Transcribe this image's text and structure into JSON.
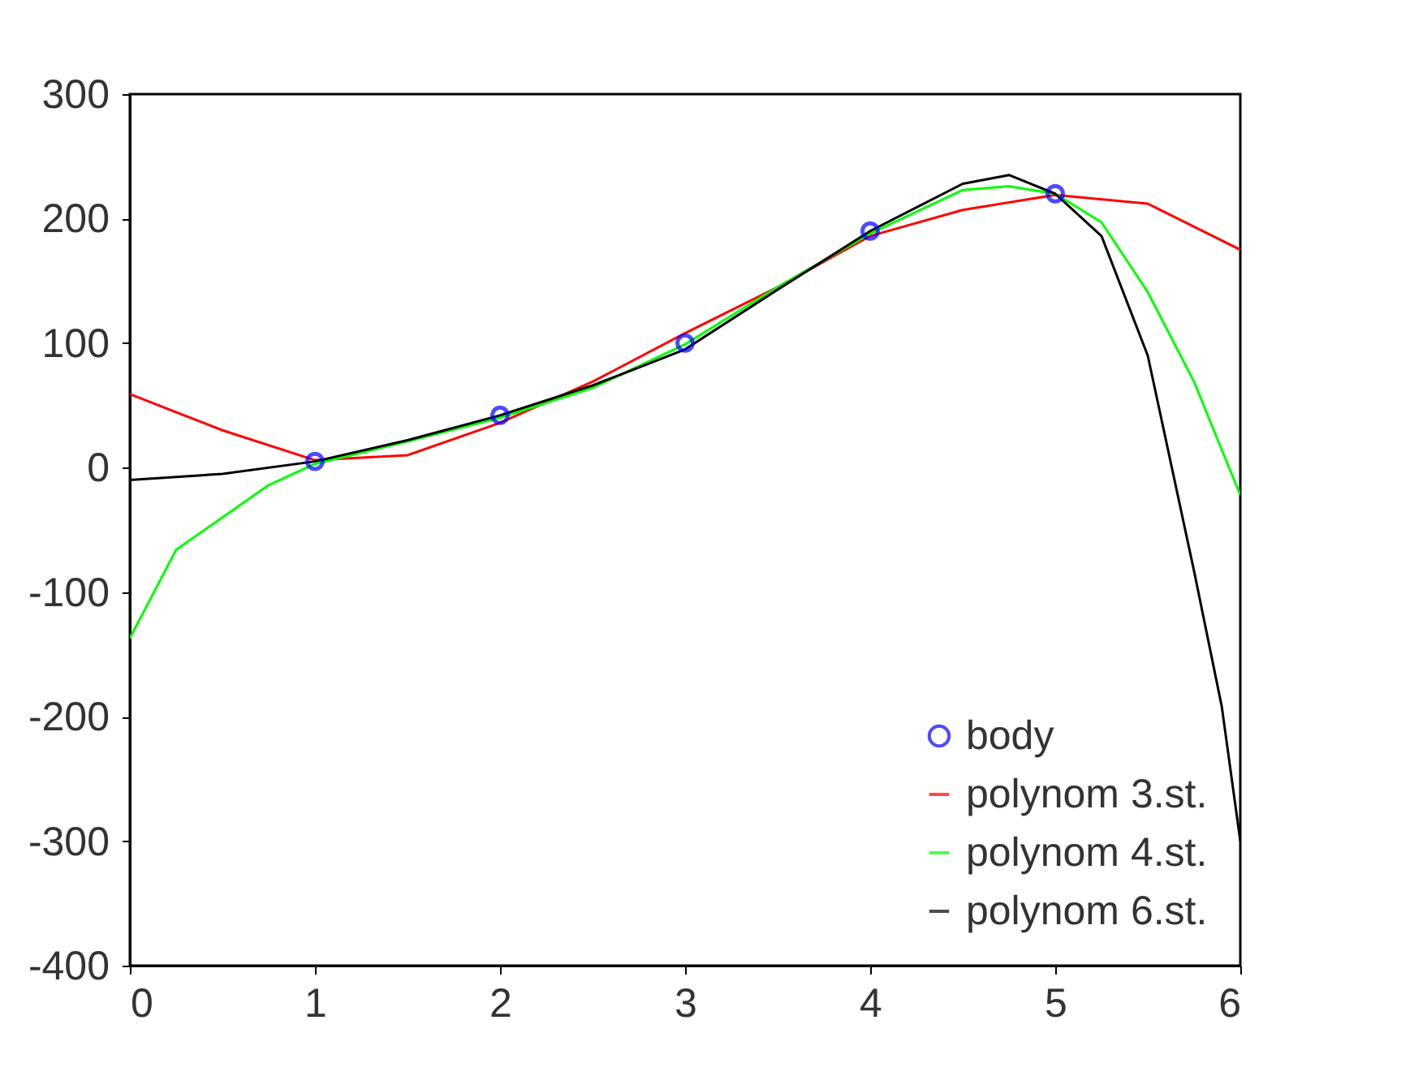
{
  "chart_data": {
    "type": "line",
    "xlim": [
      0,
      6
    ],
    "ylim": [
      -400,
      300
    ],
    "xticks": [
      0,
      1,
      2,
      3,
      4,
      5,
      6
    ],
    "yticks": [
      -400,
      -300,
      -200,
      -100,
      0,
      100,
      200,
      300
    ],
    "grid": false,
    "legend": "bottom right",
    "series": [
      {
        "name": "body",
        "type": "scatter",
        "marker": "circle",
        "color": "#0000ff",
        "x": [
          1,
          2,
          3,
          4,
          5
        ],
        "values": [
          5,
          42,
          100,
          190,
          220
        ]
      },
      {
        "name": "polynom 3.st.",
        "color": "#ff0000",
        "x": [
          0,
          0.5,
          1,
          1.5,
          2,
          2.5,
          3,
          3.5,
          4,
          4.5,
          5,
          5.5,
          6
        ],
        "values": [
          59,
          30,
          6,
          10,
          36,
          69,
          108,
          145,
          186,
          207,
          219,
          212,
          175
        ]
      },
      {
        "name": "polynom 4.st.",
        "color": "#00ff00",
        "x": [
          0,
          0.25,
          0.5,
          0.75,
          1,
          1.5,
          2,
          2.5,
          3,
          3.5,
          4,
          4.5,
          4.75,
          5,
          5.25,
          5.5,
          5.75,
          6
        ],
        "values": [
          -137,
          -66,
          -40,
          -14,
          3,
          21,
          40,
          64,
          99,
          145,
          188,
          223,
          226,
          220,
          197,
          141,
          69,
          -22
        ]
      },
      {
        "name": "polynom 6.st.",
        "color": "#000000",
        "x": [
          0,
          0.5,
          1,
          1.5,
          2,
          2.5,
          3,
          3.5,
          4,
          4.5,
          4.75,
          5,
          5.25,
          5.5,
          5.75,
          5.9,
          6
        ],
        "values": [
          -10,
          -5,
          5,
          22,
          42,
          66,
          95,
          143,
          190,
          228,
          235,
          220,
          186,
          90,
          -83,
          -192,
          -300
        ]
      }
    ]
  }
}
